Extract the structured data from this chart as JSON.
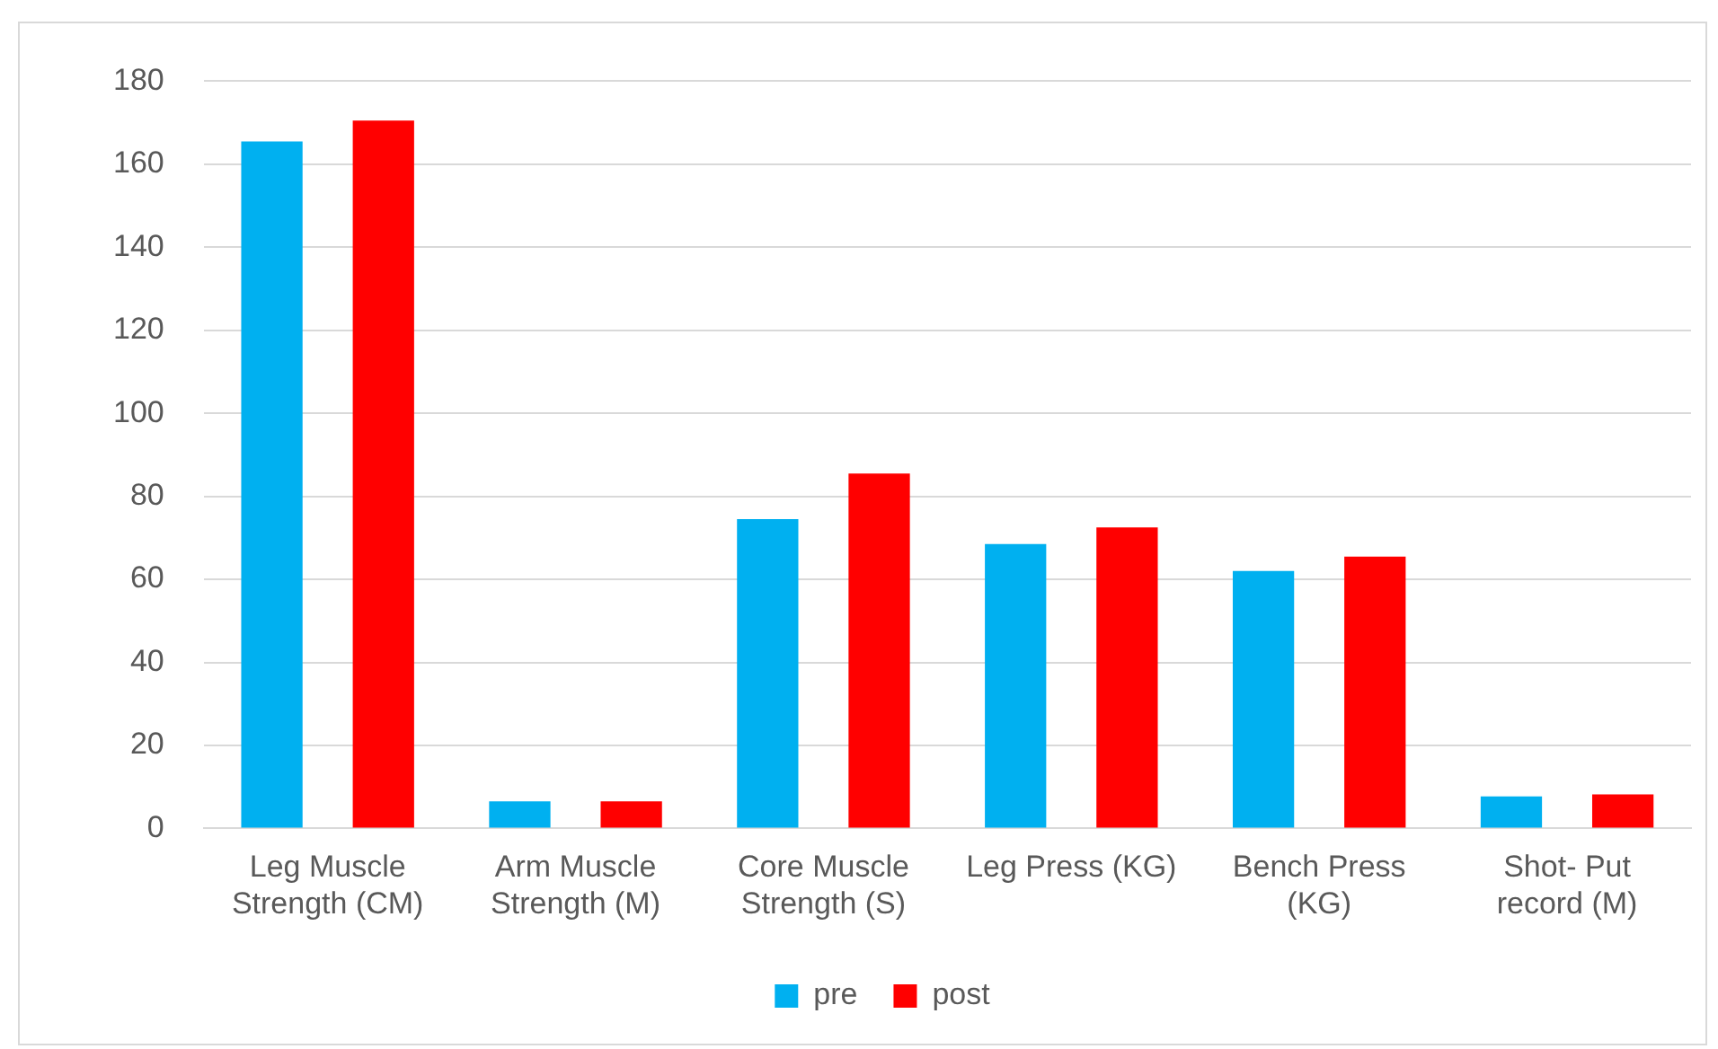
{
  "chart_data": {
    "type": "bar",
    "categories": [
      "Leg Muscle Strength (CM)",
      "Arm Muscle Strength (M)",
      "Core Muscle Strength (S)",
      "Leg Press (KG)",
      "Bench Press (KG)",
      "Shot- Put record (M)"
    ],
    "series": [
      {
        "name": "pre",
        "color": "#00b0f0",
        "values": [
          165.5,
          6.5,
          74.5,
          68.5,
          62,
          7.7
        ]
      },
      {
        "name": "post",
        "color": "#ff0000",
        "values": [
          170.5,
          6.5,
          85.5,
          72.5,
          65.5,
          8.2
        ]
      }
    ],
    "ylim": [
      0,
      180
    ],
    "yticks": [
      0,
      20,
      40,
      60,
      80,
      100,
      120,
      140,
      160,
      180
    ],
    "grid": "y",
    "legend": "bottom"
  }
}
